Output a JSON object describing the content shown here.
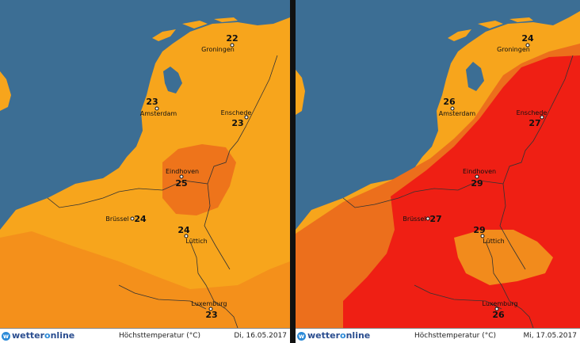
{
  "colors": {
    "sea": "#3c6e94",
    "orange_light": "#f7a51c",
    "orange_mid": "#f28b1c",
    "orange_dark": "#ec6f1c",
    "red": "#ef1f14",
    "border": "#333333"
  },
  "brand": {
    "logo_prefix": "wetter",
    "logo_o": "o",
    "logo_suffix": "nline",
    "logo_icon": "w"
  },
  "legend_title": "Höchsttemperatur (°C)",
  "maps": [
    {
      "date": "Di, 16.05.2017",
      "cities": [
        {
          "name": "Groningen",
          "temp": "22"
        },
        {
          "name": "Amsterdam",
          "temp": "23"
        },
        {
          "name": "Enschede",
          "temp": "23"
        },
        {
          "name": "Eindhoven",
          "temp": "25"
        },
        {
          "name": "Brüssel",
          "temp": "24"
        },
        {
          "name": "Lüttich",
          "temp": "24"
        },
        {
          "name": "Luxemburg",
          "temp": "23"
        }
      ]
    },
    {
      "date": "Mi, 17.05.2017",
      "cities": [
        {
          "name": "Groningen",
          "temp": "24"
        },
        {
          "name": "Amsterdam",
          "temp": "26"
        },
        {
          "name": "Enschede",
          "temp": "27"
        },
        {
          "name": "Eindhoven",
          "temp": "29"
        },
        {
          "name": "Brüssel",
          "temp": "27"
        },
        {
          "name": "Lüttich",
          "temp": "29"
        },
        {
          "name": "Luxemburg",
          "temp": "26"
        }
      ]
    }
  ]
}
